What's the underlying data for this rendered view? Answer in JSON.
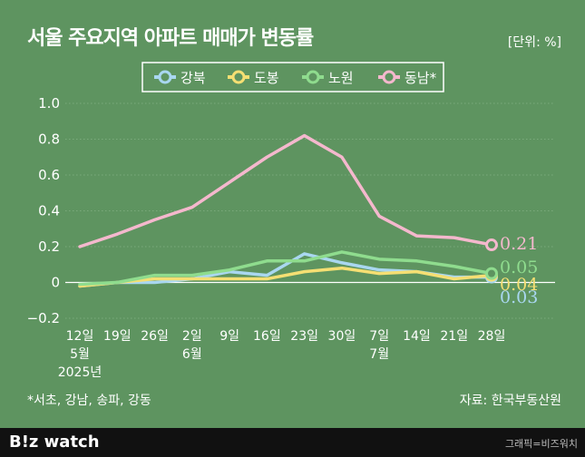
{
  "header": {
    "title": "서울 주요지역 아파트 매매가 변동률",
    "unit": "[단위: %]"
  },
  "footer": {
    "footnote": "*서초, 강남, 송파, 강동",
    "source": "자료: 한국부동산원",
    "logo": "B!z watch",
    "credit": "그래픽=비즈워치"
  },
  "colors": {
    "background": "#5e9460",
    "grid": "#7aaa7b",
    "axis_text": "#ffffff"
  },
  "chart_data": {
    "type": "line",
    "ylim": [
      -0.2,
      1.0
    ],
    "yticks": [
      "1.0",
      "0.8",
      "0.6",
      "0.4",
      "0.2",
      "0",
      "−0.2"
    ],
    "ytick_values": [
      1.0,
      0.8,
      0.6,
      0.4,
      0.2,
      0,
      -0.2
    ],
    "categories": [
      "12일",
      "19일",
      "26일",
      "2일",
      "9일",
      "16일",
      "23일",
      "30일",
      "7일",
      "14일",
      "21일",
      "28일"
    ],
    "month_labels": [
      "5월",
      "",
      "",
      "6월",
      "",
      "",
      "",
      "",
      "7월",
      "",
      "",
      ""
    ],
    "year_labels": [
      "2025년",
      "",
      "",
      "",
      "",
      "",
      "",
      "",
      "",
      "",
      "",
      ""
    ],
    "grid": true,
    "legend_position": "top",
    "series": [
      {
        "name": "강북",
        "color": "#a9d7f0",
        "values": [
          -0.02,
          0.0,
          0.0,
          0.02,
          0.06,
          0.04,
          0.16,
          0.11,
          0.07,
          0.06,
          0.03,
          0.03
        ],
        "end_label": "0.03"
      },
      {
        "name": "도봉",
        "color": "#f5df73",
        "values": [
          -0.02,
          0.0,
          0.02,
          0.02,
          0.02,
          0.02,
          0.06,
          0.08,
          0.05,
          0.06,
          0.02,
          0.04
        ],
        "end_label": "0.04"
      },
      {
        "name": "노원",
        "color": "#8fdc8e",
        "values": [
          -0.01,
          0.0,
          0.04,
          0.04,
          0.07,
          0.12,
          0.12,
          0.17,
          0.13,
          0.12,
          0.09,
          0.05
        ],
        "end_label": "0.05"
      },
      {
        "name": "동남*",
        "color": "#f4b8cd",
        "values": [
          0.2,
          0.27,
          0.35,
          0.42,
          0.56,
          0.7,
          0.82,
          0.7,
          0.37,
          0.26,
          0.25,
          0.21
        ],
        "end_label": "0.21"
      }
    ]
  }
}
